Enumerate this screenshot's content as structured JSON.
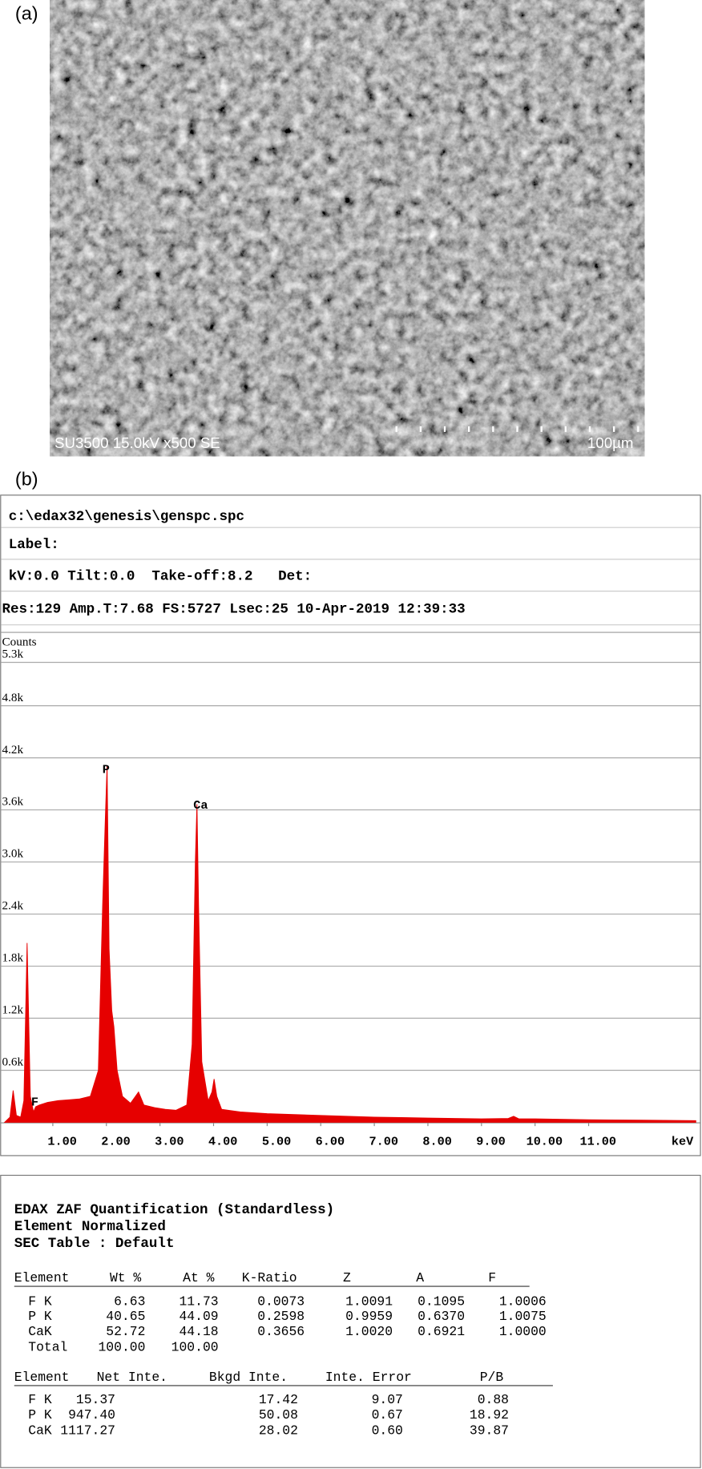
{
  "panels": {
    "a": "(a)",
    "b": "(b)"
  },
  "image": {
    "caption": "SU3500 15.0kV x500 SE",
    "scale_bar": "100µm"
  },
  "spectrum_header": [
    "c:\\edax32\\genesis\\genspc.spc",
    "Label:",
    "kV:0.0 Tilt:0.0  Take-off:8.2   Det:",
    "Res:129 Amp.T:7.68 FS:5727 Lsec:25 10-Apr-2019 12:39:33"
  ],
  "chart_data": {
    "type": "area",
    "y_label": "Counts",
    "x_unit": "keV",
    "color": "#e60000",
    "grid": true,
    "x": [
      0.1,
      0.2,
      0.26,
      0.32,
      0.4,
      0.46,
      0.52,
      0.58,
      0.64,
      0.68,
      0.75,
      0.9,
      1.1,
      1.3,
      1.5,
      1.7,
      1.85,
      1.93,
      1.98,
      2.013,
      2.05,
      2.1,
      2.14,
      2.2,
      2.3,
      2.45,
      2.6,
      2.7,
      2.9,
      3.1,
      3.3,
      3.5,
      3.6,
      3.66,
      3.69,
      3.72,
      3.78,
      3.9,
      3.97,
      4.01,
      4.06,
      4.15,
      4.5,
      5,
      6,
      7,
      8,
      9,
      9.5,
      9.6,
      9.7,
      10,
      11,
      12,
      13
    ],
    "values": [
      0,
      60,
      367,
      80,
      60,
      250,
      2067,
      300,
      120,
      180,
      200,
      230,
      250,
      260,
      270,
      300,
      600,
      2500,
      3500,
      4111,
      2000,
      1290,
      1100,
      600,
      300,
      220,
      350,
      200,
      170,
      150,
      140,
      200,
      900,
      3000,
      3667,
      2500,
      700,
      250,
      350,
      500,
      300,
      150,
      120,
      100,
      80,
      60,
      50,
      40,
      45,
      70,
      40,
      40,
      30,
      25,
      20
    ],
    "peak_labels": [
      "F",
      "P",
      "Ca"
    ],
    "xlim": [
      0,
      13.1
    ],
    "xticks": [
      {
        "value": 1,
        "label": "1.00"
      },
      {
        "value": 2,
        "label": "2.00"
      },
      {
        "value": 3,
        "label": "3.00"
      },
      {
        "value": 4,
        "label": "4.00"
      },
      {
        "value": 5,
        "label": "5.00"
      },
      {
        "value": 6,
        "label": "6.00"
      },
      {
        "value": 7,
        "label": "7.00"
      },
      {
        "value": 8,
        "label": "8.00"
      },
      {
        "value": 9,
        "label": "9.00"
      },
      {
        "value": 10,
        "label": "10.00"
      },
      {
        "value": 11,
        "label": "11.00"
      }
    ],
    "ylim": [
      0,
      5300
    ],
    "yticks": [
      {
        "value": 600,
        "label": "0.6k"
      },
      {
        "value": 1200,
        "label": "1.2k"
      },
      {
        "value": 1800,
        "label": "1.8k"
      },
      {
        "value": 2400,
        "label": "2.4k"
      },
      {
        "value": 3000,
        "label": "3.0k"
      },
      {
        "value": 3600,
        "label": "3.6k"
      },
      {
        "value": 4200,
        "label": "4.2k"
      },
      {
        "value": 4800,
        "label": "4.8k"
      },
      {
        "value": 5300,
        "label": "5.3k"
      }
    ]
  },
  "quantification": {
    "title_lines": [
      "EDAX ZAF Quantification (Standardless)",
      "Element Normalized",
      "SEC Table : Default"
    ],
    "table1": {
      "columns": [
        "Element",
        "Wt %",
        "At %",
        "K-Ratio",
        "Z",
        "A",
        "F"
      ],
      "rows": [
        [
          "F K",
          "6.63",
          "11.73",
          "0.0073",
          "1.0091",
          "0.1095",
          "1.0006"
        ],
        [
          "P K",
          "40.65",
          "44.09",
          "0.2598",
          "0.9959",
          "0.6370",
          "1.0075"
        ],
        [
          "CaK",
          "52.72",
          "44.18",
          "0.3656",
          "1.0020",
          "0.6921",
          "1.0000"
        ],
        [
          "Total",
          "100.00",
          "100.00"
        ]
      ]
    },
    "table2": {
      "columns": [
        "Element",
        "Net Inte.",
        "Bkgd Inte.",
        "Inte. Error",
        "P/B"
      ],
      "rows": [
        [
          "F K",
          "15.37",
          "17.42",
          "9.07",
          "0.88"
        ],
        [
          "P K",
          "947.40",
          "50.08",
          "0.67",
          "18.92"
        ],
        [
          "CaK",
          "1117.27",
          "28.02",
          "0.60",
          "39.87"
        ]
      ]
    }
  }
}
